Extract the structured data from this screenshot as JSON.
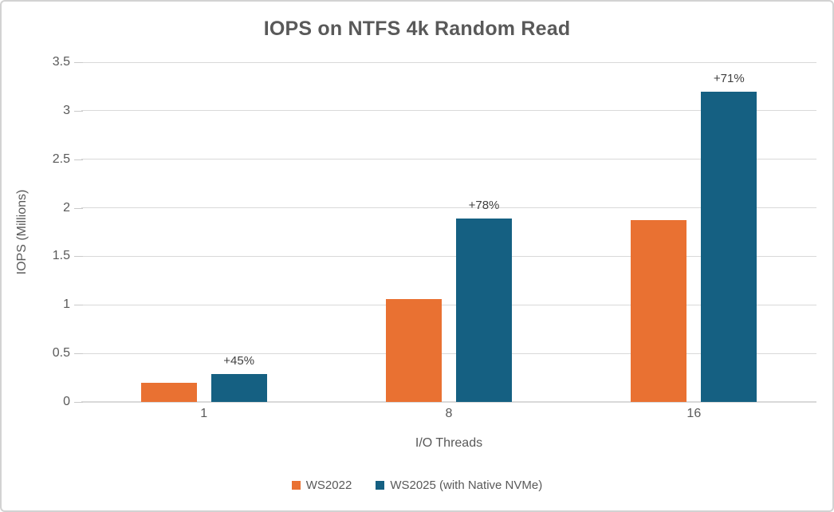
{
  "chart_data": {
    "type": "bar",
    "title": "IOPS on NTFS 4k Random Read",
    "xlabel": "I/O Threads",
    "ylabel": "IOPS (Millions)",
    "categories": [
      "1",
      "8",
      "16"
    ],
    "series": [
      {
        "name": "WS2022",
        "color": "#E97132",
        "values": [
          0.2,
          1.06,
          1.87
        ]
      },
      {
        "name": "WS2025 (with Native NVMe)",
        "color": "#156082",
        "values": [
          0.29,
          1.89,
          3.2
        ],
        "annotations": [
          "+45%",
          "+78%",
          "+71%"
        ]
      }
    ],
    "ylim": [
      0,
      3.5
    ],
    "ytick_step": 0.5,
    "grid": true,
    "legend_position": "bottom"
  },
  "colors": {
    "text": "#595959",
    "annotation": "#404040",
    "gridline": "#D9D9D9",
    "frame_border": "#D2D2D2",
    "background": "#FFFFFF"
  }
}
